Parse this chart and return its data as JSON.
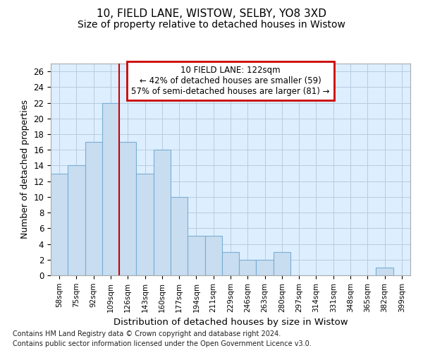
{
  "title1": "10, FIELD LANE, WISTOW, SELBY, YO8 3XD",
  "title2": "Size of property relative to detached houses in Wistow",
  "xlabel": "Distribution of detached houses by size in Wistow",
  "ylabel": "Number of detached properties",
  "categories": [
    "58sqm",
    "75sqm",
    "92sqm",
    "109sqm",
    "126sqm",
    "143sqm",
    "160sqm",
    "177sqm",
    "194sqm",
    "211sqm",
    "229sqm",
    "246sqm",
    "263sqm",
    "280sqm",
    "297sqm",
    "314sqm",
    "331sqm",
    "348sqm",
    "365sqm",
    "382sqm",
    "399sqm"
  ],
  "values": [
    13,
    14,
    17,
    22,
    17,
    13,
    16,
    10,
    5,
    5,
    3,
    2,
    2,
    3,
    0,
    0,
    0,
    0,
    0,
    1,
    0
  ],
  "bar_color": "#c8ddf0",
  "bar_edge_color": "#7aaed4",
  "vline_x": 4.5,
  "vline_color": "#cc0000",
  "annotation_line1": "10 FIELD LANE: 122sqm",
  "annotation_line2": "← 42% of detached houses are smaller (59)",
  "annotation_line3": "57% of semi-detached houses are larger (81) →",
  "annotation_box_color": "#ffffff",
  "annotation_box_edge": "#cc0000",
  "ylim": [
    0,
    27
  ],
  "yticks": [
    0,
    2,
    4,
    6,
    8,
    10,
    12,
    14,
    16,
    18,
    20,
    22,
    24,
    26
  ],
  "background_color": "#ffffff",
  "plot_bg_color": "#ddeeff",
  "grid_color": "#b8ccdf",
  "footer1": "Contains HM Land Registry data © Crown copyright and database right 2024.",
  "footer2": "Contains public sector information licensed under the Open Government Licence v3.0.",
  "title1_fontsize": 11,
  "title2_fontsize": 10
}
